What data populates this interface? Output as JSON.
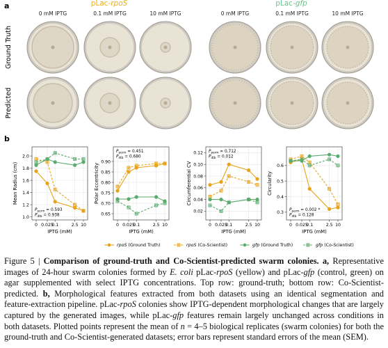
{
  "panel_a": {
    "letter": "a",
    "groups": [
      {
        "title": "pLac-rpoS",
        "color": "#e8b020",
        "columns": [
          "0 mM IPTG",
          "0.1 mM IPTG",
          "10 mM IPTG"
        ]
      },
      {
        "title": "pLac-gfp",
        "color": "#6cc28a",
        "columns": [
          "0 mM IPTG",
          "0.1 mM IPTG",
          "10 mM IPTG"
        ]
      }
    ],
    "rows": [
      "Ground Truth",
      "Predicted"
    ]
  },
  "panel_b": {
    "letter": "b"
  },
  "chart_data": [
    {
      "type": "line",
      "ylabel": "Mean Radius (cm)",
      "xlabel": "IPTG (mM)",
      "xscale": "symlog",
      "linthresh": 0.005,
      "x": [
        0,
        0.025,
        0.1,
        2.5,
        10
      ],
      "xlim": [
        0,
        10
      ],
      "xticks": [
        0,
        0.025,
        0.1,
        2.5,
        10
      ],
      "ylim": [
        0.95,
        2.15
      ],
      "yticks": [
        {
          "value": 1.0,
          "label": "1.0"
        },
        1.2,
        1.4,
        1.6,
        1.8,
        {
          "value": 2.0,
          "label": "2.0"
        }
      ],
      "grid": true,
      "stats_corner": "bottom-left",
      "stats": [
        {
          "symbol": "P",
          "sub": "perm",
          "text": " = 0.593"
        },
        {
          "symbol": "P",
          "sub": "dtb",
          "text": " = 0.938"
        }
      ],
      "series": [
        {
          "name": "rpoS (Ground Truth)",
          "color": "#e8a317",
          "marker": "circle",
          "dashed": false,
          "values": [
            1.75,
            1.55,
            1.25,
            1.15,
            1.1
          ]
        },
        {
          "name": "rpoS (Co-Scientist)",
          "color": "#e8a317",
          "marker": "square",
          "dashed": true,
          "values": [
            1.95,
            1.9,
            1.45,
            1.2,
            1.1
          ]
        },
        {
          "name": "gfp (Ground Truth)",
          "color": "#5aab6e",
          "marker": "circle",
          "dashed": false,
          "values": [
            1.85,
            1.95,
            1.9,
            1.85,
            1.9
          ]
        },
        {
          "name": "gfp (Co-Scientist)",
          "color": "#5aab6e",
          "marker": "square",
          "dashed": true,
          "values": [
            1.9,
            1.95,
            2.05,
            1.95,
            1.95
          ]
        }
      ]
    },
    {
      "type": "line",
      "ylabel": "Polar Eccentricity",
      "xlabel": "IPTG (mM)",
      "xscale": "symlog",
      "linthresh": 0.005,
      "x": [
        0,
        0.025,
        0.1,
        2.5,
        10
      ],
      "xlim": [
        0,
        10
      ],
      "xticks": [
        0,
        0.025,
        0.1,
        2.5,
        10
      ],
      "ylim": [
        0.62,
        0.97
      ],
      "yticks": [
        0.65,
        {
          "value": 0.7,
          "label": "0.70"
        },
        0.75,
        {
          "value": 0.8,
          "label": "0.80"
        },
        0.85,
        {
          "value": 0.9,
          "label": "0.90"
        }
      ],
      "grid": true,
      "stats_corner": "top-left",
      "stats": [
        {
          "symbol": "P",
          "sub": "perm",
          "text": " = 0.451"
        },
        {
          "symbol": "P",
          "sub": "dtb",
          "text": " = 0.680"
        }
      ],
      "series": [
        {
          "name": "rpoS (Ground Truth)",
          "color": "#e8a317",
          "marker": "circle",
          "dashed": false,
          "values": [
            0.76,
            0.85,
            0.87,
            0.88,
            0.89
          ]
        },
        {
          "name": "rpoS (Co-Scientist)",
          "color": "#e8a317",
          "marker": "square",
          "dashed": true,
          "values": [
            0.78,
            0.87,
            0.88,
            0.89,
            0.89
          ]
        },
        {
          "name": "gfp (Ground Truth)",
          "color": "#5aab6e",
          "marker": "circle",
          "dashed": false,
          "values": [
            0.72,
            0.72,
            0.73,
            0.73,
            0.71
          ]
        },
        {
          "name": "gfp (Co-Scientist)",
          "color": "#5aab6e",
          "marker": "square",
          "dashed": true,
          "values": [
            0.71,
            0.68,
            0.65,
            0.69,
            0.7
          ]
        }
      ]
    },
    {
      "type": "line",
      "ylabel": "Circumferential CV",
      "xlabel": "IPTG (mM)",
      "xscale": "symlog",
      "linthresh": 0.005,
      "x": [
        0,
        0.025,
        0.1,
        2.5,
        10
      ],
      "xlim": [
        0,
        10
      ],
      "xticks": [
        0,
        0.025,
        0.1,
        2.5,
        10
      ],
      "ylim": [
        0.005,
        0.13
      ],
      "yticks": [
        0.02,
        0.04,
        0.06,
        0.08,
        {
          "value": 0.1,
          "label": "0.10"
        },
        0.12
      ],
      "grid": true,
      "stats_corner": "top-left",
      "stats": [
        {
          "symbol": "P",
          "sub": "perm",
          "text": " = 0.712"
        },
        {
          "symbol": "P",
          "sub": "dtb",
          "text": " = 0.012"
        }
      ],
      "series": [
        {
          "name": "rpoS (Ground Truth)",
          "color": "#e8a317",
          "marker": "circle",
          "dashed": false,
          "values": [
            0.065,
            0.07,
            0.1,
            0.09,
            0.075
          ]
        },
        {
          "name": "rpoS (Co-Scientist)",
          "color": "#e8a317",
          "marker": "square",
          "dashed": true,
          "values": [
            0.045,
            0.055,
            0.08,
            0.07,
            0.065
          ]
        },
        {
          "name": "gfp (Ground Truth)",
          "color": "#5aab6e",
          "marker": "circle",
          "dashed": false,
          "values": [
            0.04,
            0.04,
            0.035,
            0.04,
            0.04
          ]
        },
        {
          "name": "gfp (Co-Scientist)",
          "color": "#5aab6e",
          "marker": "square",
          "dashed": true,
          "values": [
            0.03,
            0.02,
            0.035,
            0.04,
            0.035
          ]
        }
      ]
    },
    {
      "type": "line",
      "ylabel": "Circularity",
      "xlabel": "IPTG (mM)",
      "xscale": "symlog",
      "linthresh": 0.005,
      "x": [
        0,
        0.025,
        0.1,
        2.5,
        10
      ],
      "xlim": [
        0,
        10
      ],
      "xticks": [
        0,
        0.025,
        0.1,
        2.5,
        10
      ],
      "ylim": [
        0.25,
        0.72
      ],
      "yticks": [
        0.3,
        0.4,
        0.5,
        0.6
      ],
      "grid": true,
      "stats_corner": "bottom-left",
      "stats": [
        {
          "symbol": "P",
          "sub": "perm",
          "text": " = 0.002 *"
        },
        {
          "symbol": "P",
          "sub": "dtb",
          "text": " = 0.128"
        }
      ],
      "series": [
        {
          "name": "rpoS (Ground Truth)",
          "color": "#e8a317",
          "marker": "circle",
          "dashed": false,
          "values": [
            0.62,
            0.64,
            0.45,
            0.32,
            0.33
          ]
        },
        {
          "name": "rpoS (Co-Scientist)",
          "color": "#e8a317",
          "marker": "square",
          "dashed": true,
          "values": [
            0.64,
            0.66,
            0.62,
            0.45,
            0.35
          ]
        },
        {
          "name": "gfp (Ground Truth)",
          "color": "#5aab6e",
          "marker": "circle",
          "dashed": false,
          "values": [
            0.63,
            0.63,
            0.66,
            0.67,
            0.66
          ]
        },
        {
          "name": "gfp (Co-Scientist)",
          "color": "#5aab6e",
          "marker": "square",
          "dashed": true,
          "values": [
            0.63,
            0.64,
            0.6,
            0.64,
            0.6
          ]
        }
      ]
    }
  ],
  "caption": [
    {
      "text": "Figure 5 | ",
      "style": "normal"
    },
    {
      "text": "Comparison of ground-truth and Co-Scientist-predicted swarm colonies. a,",
      "style": "bold"
    },
    {
      "text": " Representative images of 24-hour swarm colonies formed by ",
      "style": "normal"
    },
    {
      "text": "E. coli",
      "style": "italic"
    },
    {
      "text": " pLac-",
      "style": "normal"
    },
    {
      "text": "rpoS",
      "style": "italic"
    },
    {
      "text": " (yellow) and pLac-",
      "style": "normal"
    },
    {
      "text": "gfp",
      "style": "italic"
    },
    {
      "text": " (control, green) on agar supplemented with select IPTG concentrations. Top row: ground-truth; bottom row: Co-Scientist-predicted. ",
      "style": "normal"
    },
    {
      "text": "b,",
      "style": "bold"
    },
    {
      "text": " Morphological features extracted from both datasets using an identical segmentation and feature-extraction pipeline. pLac-",
      "style": "normal"
    },
    {
      "text": "rpoS",
      "style": "italic"
    },
    {
      "text": " colonies show IPTG-dependent morphological changes that are largely captured by the generated images, while pLac-",
      "style": "normal"
    },
    {
      "text": "gfp",
      "style": "italic"
    },
    {
      "text": " features remain largely unchanged across conditions in both datasets. Plotted points represent the mean of ",
      "style": "normal"
    },
    {
      "text": "n",
      "style": "italic"
    },
    {
      "text": " = 4–5 biological replicates (swarm colonies) for both the ground-truth and Co-Scientist-generated datasets; error bars represent standard errors of the mean (SEM).",
      "style": "normal"
    }
  ]
}
